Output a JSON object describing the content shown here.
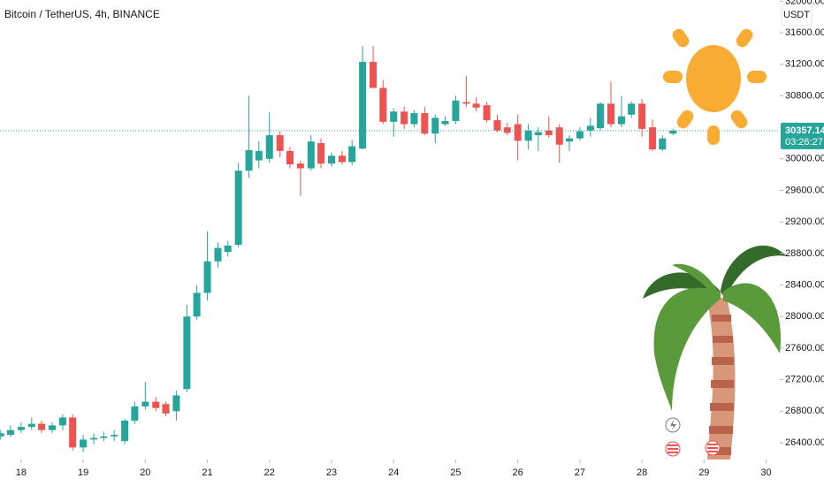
{
  "chart_data": {
    "type": "candlestick",
    "title": "Bitcoin / TetherUS, 4h, BINANCE",
    "currency": "USDT",
    "last_price": 30357.14,
    "countdown": "03:26:27",
    "up_color": "#26a69a",
    "down_color": "#ef5350",
    "grid": false,
    "x": [
      17.67,
      17.83,
      18,
      18.17,
      18.33,
      18.5,
      18.67,
      18.83,
      19,
      19.17,
      19.33,
      19.5,
      19.67,
      19.83,
      20,
      20.17,
      20.33,
      20.5,
      20.67,
      20.83,
      21,
      21.17,
      21.33,
      21.5,
      21.67,
      21.83,
      22,
      22.17,
      22.33,
      22.5,
      22.67,
      22.83,
      23,
      23.17,
      23.33,
      23.5,
      23.67,
      23.83,
      24,
      24.17,
      24.33,
      24.5,
      24.67,
      24.83,
      25,
      25.17,
      25.33,
      25.5,
      25.67,
      25.83,
      26,
      26.17,
      26.33,
      26.5,
      26.67,
      26.83,
      27,
      27.17,
      27.33,
      27.5,
      27.67,
      27.83,
      28,
      28.17,
      28.33,
      28.5
    ],
    "open": [
      26480,
      26500,
      26560,
      26600,
      26640,
      26560,
      26620,
      26720,
      26340,
      26440,
      26460,
      26480,
      26420,
      26680,
      26860,
      26920,
      26890,
      26800,
      27080,
      28000,
      28300,
      28700,
      28820,
      28910,
      29850,
      29980,
      30000,
      30300,
      30100,
      29940,
      29880,
      30200,
      29940,
      30040,
      29960,
      30130,
      31230,
      30900,
      30470,
      30600,
      30440,
      30580,
      30320,
      30440,
      30480,
      30720,
      30700,
      30680,
      30490,
      30400,
      30440,
      30230,
      30300,
      30360,
      30400,
      30220,
      30260,
      30360,
      30390,
      30700,
      30440,
      30560,
      30700,
      30400,
      30120,
      30320
    ],
    "high": [
      26560,
      26620,
      26660,
      26720,
      26680,
      26660,
      26760,
      26760,
      26500,
      26520,
      26540,
      26560,
      26700,
      26920,
      27170,
      26980,
      26920,
      27060,
      28150,
      28400,
      29080,
      28940,
      28960,
      29950,
      30800,
      30220,
      30590,
      30350,
      30150,
      29980,
      30300,
      30260,
      30080,
      30100,
      30240,
      31430,
      31430,
      31000,
      30640,
      30660,
      30620,
      30660,
      30560,
      30540,
      30800,
      31050,
      30780,
      30720,
      30560,
      30460,
      30560,
      30440,
      30400,
      30540,
      30440,
      30300,
      30400,
      30520,
      30720,
      30980,
      30800,
      30730,
      30760,
      30500,
      30300,
      30380
    ],
    "low": [
      26440,
      26470,
      26520,
      26560,
      26520,
      26520,
      26560,
      26300,
      26280,
      26380,
      26420,
      26420,
      26380,
      26640,
      26820,
      26800,
      26740,
      26680,
      27040,
      27960,
      28200,
      28620,
      28760,
      28880,
      29760,
      29880,
      29950,
      30020,
      29880,
      29530,
      29850,
      29880,
      29900,
      29930,
      29920,
      30120,
      30920,
      30440,
      30280,
      30380,
      30400,
      30300,
      30200,
      30420,
      30440,
      30660,
      30600,
      30460,
      30340,
      30300,
      29980,
      30120,
      30100,
      30270,
      29950,
      30100,
      30230,
      30280,
      30360,
      30400,
      30400,
      30520,
      30280,
      30100,
      30100,
      30300
    ],
    "close": [
      26520,
      26560,
      26600,
      26640,
      26560,
      26620,
      26720,
      26340,
      26440,
      26460,
      26480,
      26500,
      26680,
      26860,
      26920,
      26840,
      26770,
      27000,
      28000,
      28300,
      28700,
      28870,
      28900,
      29850,
      30110,
      30100,
      30300,
      30100,
      29930,
      29880,
      30220,
      29940,
      30040,
      29960,
      30160,
      31230,
      30900,
      30470,
      30600,
      30440,
      30580,
      30320,
      30520,
      30480,
      30740,
      30700,
      30650,
      30490,
      30360,
      30330,
      30230,
      30360,
      30340,
      30300,
      30180,
      30260,
      30350,
      30420,
      30700,
      30440,
      30540,
      30700,
      30380,
      30120,
      30260,
      30357.14
    ],
    "xlim": [
      17.66,
      30.22
    ],
    "xticks": [
      18,
      19,
      20,
      21,
      22,
      23,
      24,
      25,
      26,
      27,
      28,
      29,
      30
    ],
    "ylim": [
      26187,
      32015
    ],
    "yticks": [
      {
        "value": 26400,
        "label": "26400.00"
      },
      {
        "value": 26800,
        "label": "26800.00"
      },
      {
        "value": 27200,
        "label": "27200.00"
      },
      {
        "value": 27600,
        "label": "27600.00"
      },
      {
        "value": 28000,
        "label": "28000.00"
      },
      {
        "value": 28400,
        "label": "28400.00"
      },
      {
        "value": 28800,
        "label": "28800.00"
      },
      {
        "value": 29200,
        "label": "29200.00"
      },
      {
        "value": 29600,
        "label": "29600.00"
      },
      {
        "value": 30000,
        "label": "30000.00"
      },
      {
        "value": 30800,
        "label": "30800.00"
      },
      {
        "value": 31200,
        "label": "31200.00"
      },
      {
        "value": 31600,
        "label": "31600.00"
      },
      {
        "value": 32000,
        "label": "32000.00"
      }
    ]
  }
}
